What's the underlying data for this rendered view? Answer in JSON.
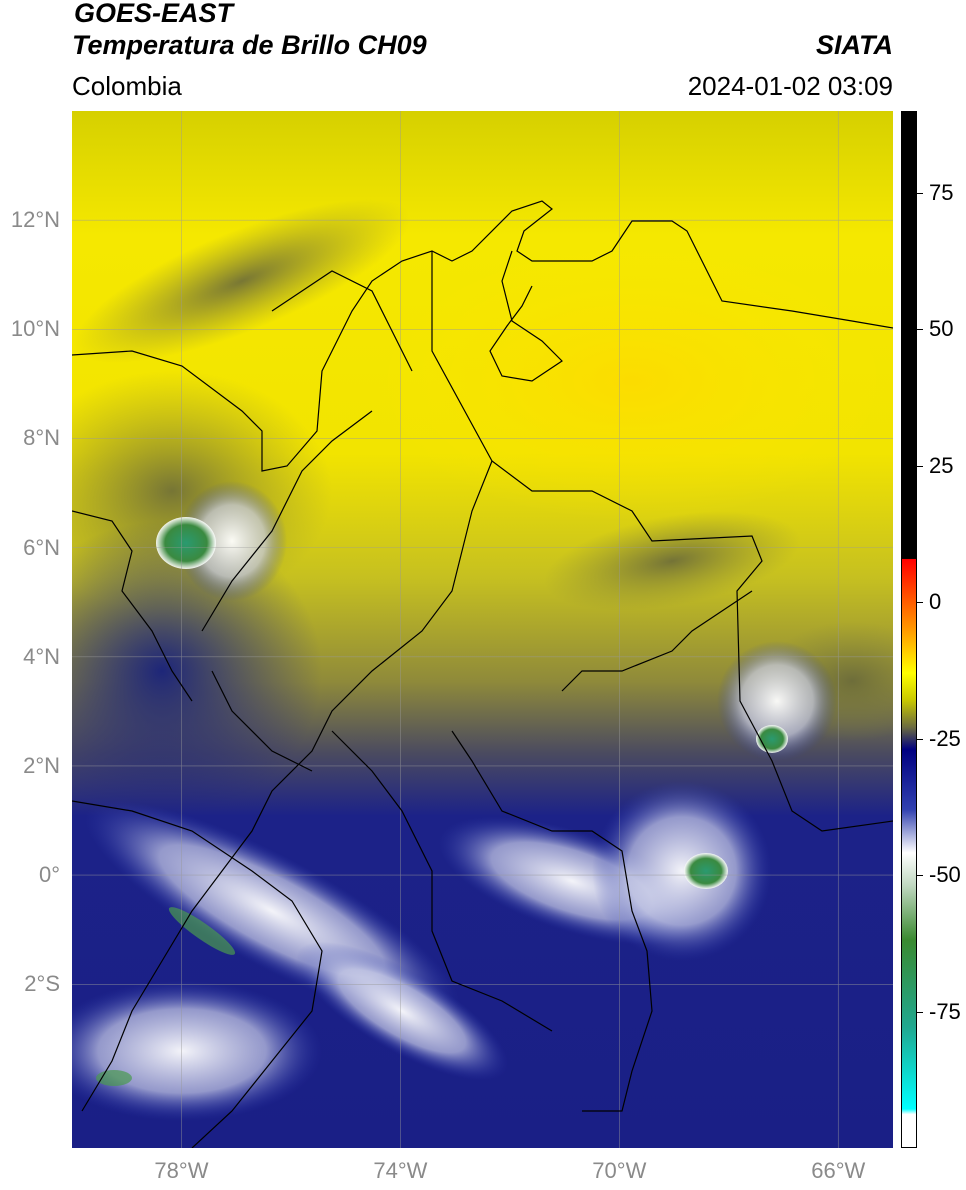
{
  "header": {
    "satellite": "GOES-EAST",
    "product": "Temperatura de Brillo CH09",
    "region": "Colombia",
    "agency": "SIATA",
    "datetime": "2024-01-02 03:09"
  },
  "map": {
    "lon_range": [
      -80,
      -65
    ],
    "lat_range": [
      -5,
      14
    ],
    "lon_ticks": [
      {
        "value": -78,
        "label": "78°W"
      },
      {
        "value": -74,
        "label": "74°W"
      },
      {
        "value": -70,
        "label": "70°W"
      },
      {
        "value": -66,
        "label": "66°W"
      }
    ],
    "lat_ticks": [
      {
        "value": 12,
        "label": "12°N"
      },
      {
        "value": 10,
        "label": "10°N"
      },
      {
        "value": 8,
        "label": "8°N"
      },
      {
        "value": 6,
        "label": "6°N"
      },
      {
        "value": 4,
        "label": "4°N"
      },
      {
        "value": 2,
        "label": "2°N"
      },
      {
        "value": 0,
        "label": "0°"
      },
      {
        "value": -2,
        "label": "2°S"
      }
    ],
    "gridlines": true,
    "colors": {
      "warm_yellow": "#f2e400",
      "olive": "#8a8a3a",
      "navy": "#1a1f86",
      "white": "#ffffff",
      "green": "#3a9a50",
      "border": "#000000"
    }
  },
  "colorbar": {
    "min": -100,
    "max": 90,
    "ticks": [
      {
        "value": 75,
        "label": "75"
      },
      {
        "value": 50,
        "label": "50"
      },
      {
        "value": 25,
        "label": "25"
      },
      {
        "value": 0,
        "label": "0"
      },
      {
        "value": -25,
        "label": "-25"
      },
      {
        "value": -50,
        "label": "-50"
      },
      {
        "value": -75,
        "label": "-75"
      }
    ],
    "stops": [
      {
        "value": 90,
        "color": "#000000"
      },
      {
        "value": 8,
        "color": "#000000"
      },
      {
        "value": 7.9,
        "color": "#ff0000"
      },
      {
        "value": -5,
        "color": "#ff9900"
      },
      {
        "value": -13,
        "color": "#ffff00"
      },
      {
        "value": -18,
        "color": "#c8c800"
      },
      {
        "value": -23,
        "color": "#6a6a40"
      },
      {
        "value": -27,
        "color": "#000080"
      },
      {
        "value": -38,
        "color": "#3040b0"
      },
      {
        "value": -46,
        "color": "#ffffff"
      },
      {
        "value": -52,
        "color": "#c0d8c0"
      },
      {
        "value": -62,
        "color": "#3a8a30"
      },
      {
        "value": -78,
        "color": "#20a890"
      },
      {
        "value": -93,
        "color": "#00ffff"
      },
      {
        "value": -94,
        "color": "#ffffff"
      },
      {
        "value": -100,
        "color": "#ffffff"
      }
    ]
  }
}
